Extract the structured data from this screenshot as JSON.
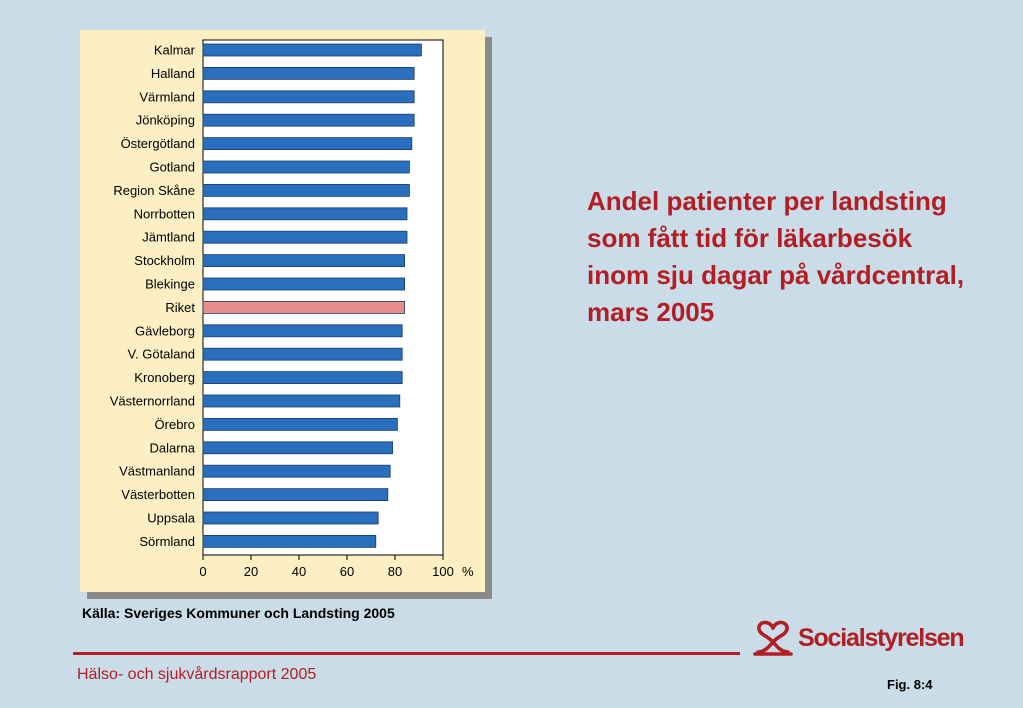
{
  "chart_data": {
    "type": "bar",
    "orientation": "horizontal",
    "title": "Andel patienter per landsting som fått tid för läkarbesök inom sju dagar på vårdcentral, mars 2005",
    "categories": [
      "Kalmar",
      "Halland",
      "Värmland",
      "Jönköping",
      "Östergötland",
      "Gotland",
      "Region Skåne",
      "Norrbotten",
      "Jämtland",
      "Stockholm",
      "Blekinge",
      "Riket",
      "Gävleborg",
      "V. Götaland",
      "Kronoberg",
      "Västernorrland",
      "Örebro",
      "Dalarna",
      "Västmanland",
      "Västerbotten",
      "Uppsala",
      "Sörmland"
    ],
    "values": [
      91,
      88,
      88,
      88,
      87,
      86,
      86,
      85,
      85,
      84,
      84,
      84,
      83,
      83,
      83,
      82,
      81,
      79,
      78,
      77,
      73,
      72
    ],
    "highlight_category": "Riket",
    "x_ticks": [
      0,
      20,
      40,
      60,
      80,
      100
    ],
    "xlabel": "%",
    "xlim": [
      0,
      100
    ],
    "grid": false,
    "colors": {
      "bar": "#2a6fbd",
      "highlight": "#ec8c8a",
      "bar_stroke": "#1a3d6c"
    }
  },
  "source": "Källa: Sveriges Kommuner och Landsting 2005",
  "footer": {
    "report_title": "Hälso- och sjukvårdsrapport 2005",
    "fig_label": "Fig. 8:4"
  },
  "brand": {
    "name": "Socialstyrelsen",
    "logo_icon": "socialstyrelsen-logo-icon",
    "color": "#b21e24"
  }
}
